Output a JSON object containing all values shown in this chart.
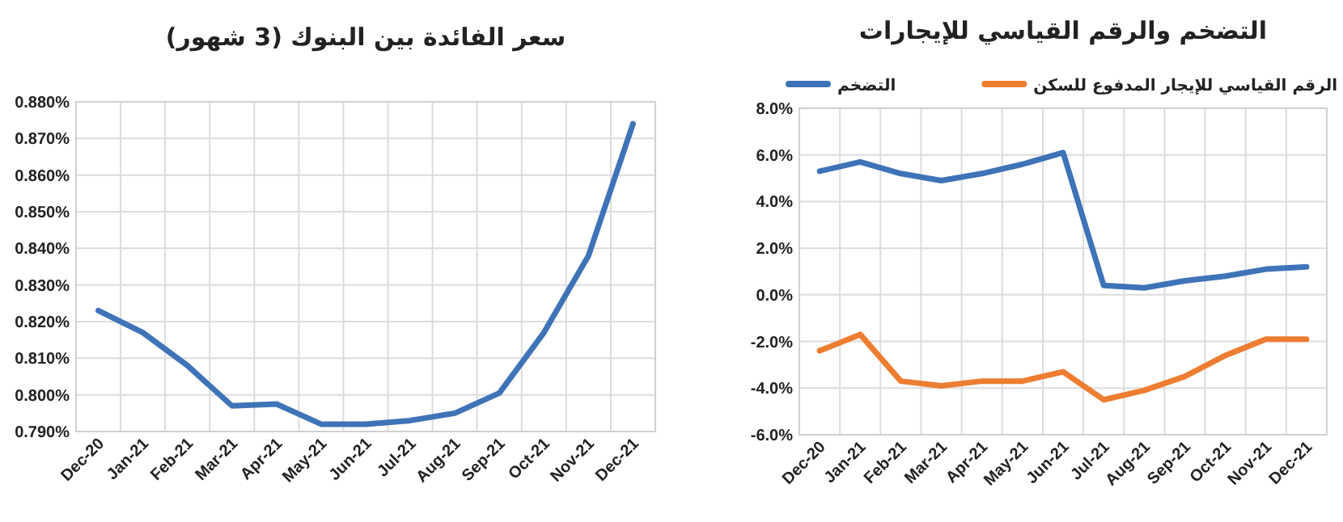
{
  "chart_data": [
    {
      "type": "line",
      "title": "سعر الفائدة بين البنوك (3 شهور)",
      "categories": [
        "Dec-20",
        "Jan-21",
        "Feb-21",
        "Mar-21",
        "Apr-21",
        "May-21",
        "Jun-21",
        "Jul-21",
        "Aug-21",
        "Sep-21",
        "Oct-21",
        "Nov-21",
        "Dec-21"
      ],
      "series": [
        {
          "color": "#3f73b8",
          "values": [
            0.823,
            0.817,
            0.808,
            0.797,
            0.7975,
            0.792,
            0.792,
            0.793,
            0.795,
            0.8005,
            0.817,
            0.838,
            0.874
          ]
        }
      ],
      "ylim": [
        0.79,
        0.88
      ],
      "yticks": [
        {
          "value": 0.79,
          "label": "0.790%"
        },
        {
          "value": 0.8,
          "label": "0.800%"
        },
        {
          "value": 0.81,
          "label": "0.810%"
        },
        {
          "value": 0.82,
          "label": "0.820%"
        },
        {
          "value": 0.83,
          "label": "0.830%"
        },
        {
          "value": 0.84,
          "label": "0.840%"
        },
        {
          "value": 0.85,
          "label": "0.850%"
        },
        {
          "value": 0.86,
          "label": "0.860%"
        },
        {
          "value": 0.87,
          "label": "0.870%"
        },
        {
          "value": 0.88,
          "label": "0.880%"
        }
      ],
      "grid": true,
      "marker": "none",
      "line_style": "solid"
    },
    {
      "type": "line",
      "title": "التضخم والرقم القياسي للإيجارات",
      "categories": [
        "Dec-20",
        "Jan-21",
        "Feb-21",
        "Mar-21",
        "Apr-21",
        "May-21",
        "Jun-21",
        "Jul-21",
        "Aug-21",
        "Sep-21",
        "Oct-21",
        "Nov-21",
        "Dec-21"
      ],
      "series": [
        {
          "name": "التضخم",
          "color": "#3f73b8",
          "values": [
            5.3,
            5.7,
            5.2,
            4.9,
            5.2,
            5.6,
            6.1,
            0.4,
            0.3,
            0.6,
            0.8,
            1.1,
            1.2
          ]
        },
        {
          "name": "الرقم القياسي للإيجار المدفوع للسكن",
          "color": "#ed7d31",
          "values": [
            -2.4,
            -1.7,
            -3.7,
            -3.9,
            -3.7,
            -3.7,
            -3.3,
            -4.5,
            -4.1,
            -3.5,
            -2.6,
            -1.9,
            -1.9
          ]
        }
      ],
      "ylim": [
        -6,
        8
      ],
      "yticks": [
        {
          "value": -6,
          "label": "-6.0%"
        },
        {
          "value": -4,
          "label": "-4.0%"
        },
        {
          "value": -2,
          "label": "-2.0%"
        },
        {
          "value": 0,
          "label": "0.0%"
        },
        {
          "value": 2,
          "label": "2.0%"
        },
        {
          "value": 4,
          "label": "4.0%"
        },
        {
          "value": 6,
          "label": "6.0%"
        },
        {
          "value": 8,
          "label": "8.0%"
        }
      ],
      "grid": true,
      "legend": "top",
      "marker": "none",
      "line_style": "solid"
    }
  ]
}
